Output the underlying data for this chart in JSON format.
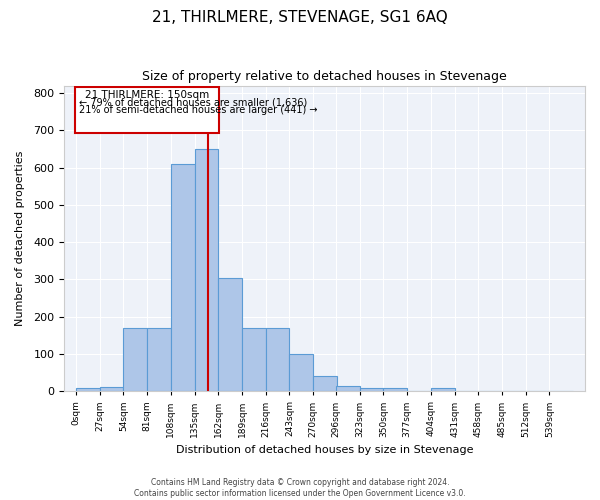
{
  "title": "21, THIRLMERE, STEVENAGE, SG1 6AQ",
  "subtitle": "Size of property relative to detached houses in Stevenage",
  "xlabel": "Distribution of detached houses by size in Stevenage",
  "ylabel": "Number of detached properties",
  "bin_labels": [
    "0sqm",
    "27sqm",
    "54sqm",
    "81sqm",
    "108sqm",
    "135sqm",
    "162sqm",
    "189sqm",
    "216sqm",
    "243sqm",
    "270sqm",
    "296sqm",
    "323sqm",
    "350sqm",
    "377sqm",
    "404sqm",
    "431sqm",
    "458sqm",
    "485sqm",
    "512sqm",
    "539sqm"
  ],
  "bin_left_edges": [
    0,
    27,
    54,
    81,
    108,
    135,
    162,
    189,
    216,
    243,
    270,
    296,
    323,
    350,
    377,
    404,
    431,
    458,
    485,
    512,
    539
  ],
  "bar_heights": [
    8,
    12,
    170,
    170,
    610,
    650,
    305,
    170,
    170,
    100,
    42,
    15,
    8,
    8,
    0,
    10,
    0,
    0,
    0,
    0,
    0
  ],
  "bar_color": "#aec6e8",
  "bar_edge_color": "#5b9bd5",
  "property_size": 150,
  "vline_color": "#cc0000",
  "annotation_box_color": "#cc0000",
  "annotation_text_line1": "21 THIRLMERE: 150sqm",
  "annotation_text_line2": "← 79% of detached houses are smaller (1,636)",
  "annotation_text_line3": "21% of semi-detached houses are larger (441) →",
  "ylim": [
    0,
    820
  ],
  "yticks": [
    0,
    100,
    200,
    300,
    400,
    500,
    600,
    700,
    800
  ],
  "background_color": "#eef2f9",
  "footer_line1": "Contains HM Land Registry data © Crown copyright and database right 2024.",
  "footer_line2": "Contains public sector information licensed under the Open Government Licence v3.0."
}
